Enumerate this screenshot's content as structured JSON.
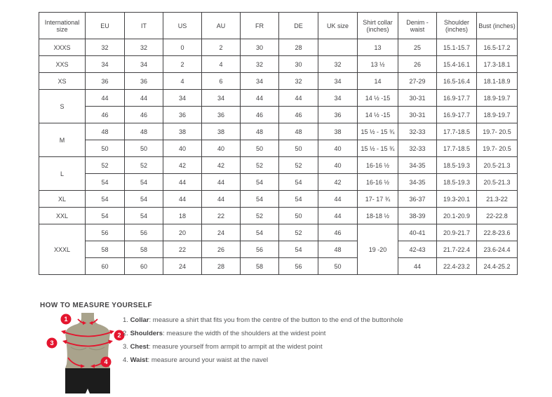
{
  "colors": {
    "accent_red": "#e4152e",
    "mannequin_body": "#a9a38c",
    "mannequin_shorts": "#1c1c1c",
    "table_border": "#414042",
    "text": "#414042"
  },
  "table": {
    "headers": [
      "International size",
      "EU",
      "IT",
      "US",
      "AU",
      "FR",
      "DE",
      "UK size",
      "Shirt collar (inches)",
      "Denim - waist",
      "Shoulder (inches)",
      "Bust (inches)"
    ],
    "rows": [
      [
        "XXXS",
        "32",
        "32",
        "0",
        "2",
        "30",
        "28",
        "",
        "13",
        "25",
        "15.1-15.7",
        "16.5-17.2"
      ],
      [
        "XXS",
        "34",
        "34",
        "2",
        "4",
        "32",
        "30",
        "32",
        "13 ½",
        "26",
        "15.4-16.1",
        "17.3-18.1"
      ],
      [
        "XS",
        "36",
        "36",
        "4",
        "6",
        "34",
        "32",
        "34",
        "14",
        "27-29",
        "16.5-16.4",
        "18.1-18.9"
      ],
      [
        {
          "v": "S",
          "rs": 2
        },
        "44",
        "44",
        "34",
        "34",
        "44",
        "44",
        "34",
        "14 ½ -15",
        "30-31",
        "16.9-17.7",
        "18.9-19.7"
      ],
      [
        "46",
        "46",
        "36",
        "36",
        "46",
        "46",
        "36",
        "14 ½ -15",
        "30-31",
        "16.9-17.7",
        "18.9-19.7"
      ],
      [
        {
          "v": "M",
          "rs": 2
        },
        "48",
        "48",
        "38",
        "38",
        "48",
        "48",
        "38",
        "15 ½ - 15 ¾",
        "32-33",
        "17.7-18.5",
        "19.7- 20.5"
      ],
      [
        "50",
        "50",
        "40",
        "40",
        "50",
        "50",
        "40",
        "15 ½ - 15 ¾",
        "32-33",
        "17.7-18.5",
        "19.7- 20.5"
      ],
      [
        {
          "v": "L",
          "rs": 2
        },
        "52",
        "52",
        "42",
        "42",
        "52",
        "52",
        "40",
        "16-16 ½",
        "34-35",
        "18.5-19.3",
        "20.5-21.3"
      ],
      [
        "54",
        "54",
        "44",
        "44",
        "54",
        "54",
        "42",
        "16-16 ½",
        "34-35",
        "18.5-19.3",
        "20.5-21.3"
      ],
      [
        "XL",
        "54",
        "54",
        "44",
        "44",
        "54",
        "54",
        "44",
        "17- 17 ¾",
        "36-37",
        "19.3-20.1",
        "21.3-22"
      ],
      [
        "XXL",
        "54",
        "54",
        "18",
        "22",
        "52",
        "50",
        "44",
        "18-18 ½",
        "38-39",
        "20.1-20.9",
        "22-22.8"
      ],
      [
        {
          "v": "XXXL",
          "rs": 3
        },
        "56",
        "56",
        "20",
        "24",
        "54",
        "52",
        "46",
        {
          "v": "19 -20",
          "rs": 3
        },
        "40-41",
        "20.9-21.7",
        "22.8-23.6"
      ],
      [
        "58",
        "58",
        "22",
        "26",
        "56",
        "54",
        "48",
        "42-43",
        "21.7-22.4",
        "23.6-24.4"
      ],
      [
        "60",
        "60",
        "24",
        "28",
        "58",
        "56",
        "50",
        "44",
        "22.4-23.2",
        "24.4-25.2"
      ]
    ]
  },
  "measure": {
    "title": "HOW TO MEASURE YOURSELF",
    "points": [
      "1",
      "2",
      "3",
      "4"
    ],
    "steps": [
      {
        "num": "1.",
        "label": "Collar",
        "text": "measure a shirt that fits you from the centre of the button to the end of the buttonhole"
      },
      {
        "num": "2.",
        "label": "Shoulders",
        "text": "measure the width of the shoulders at the widest point"
      },
      {
        "num": "3.",
        "label": "Chest",
        "text": "measure yourself from armpit to armpit at the widest point"
      },
      {
        "num": "4.",
        "label": "Waist",
        "text": "measure around your waist at the navel"
      }
    ]
  }
}
